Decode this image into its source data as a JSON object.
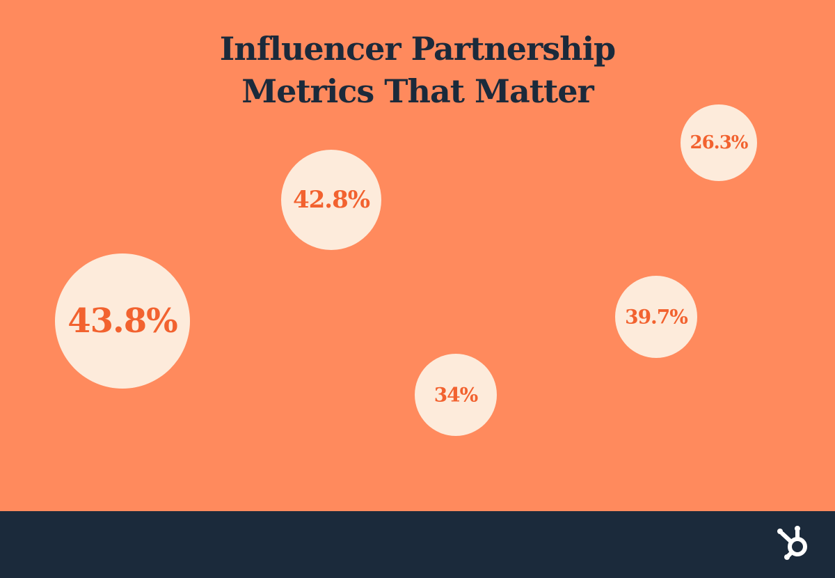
{
  "title_lines": [
    "Influencer Partnership",
    "Metrics That Matter"
  ],
  "bubbles": [
    {
      "label": "26.3%"
    },
    {
      "label": "42.8%"
    },
    {
      "label": "43.8%"
    },
    {
      "label": "39.7%"
    },
    {
      "label": "34%"
    }
  ]
}
